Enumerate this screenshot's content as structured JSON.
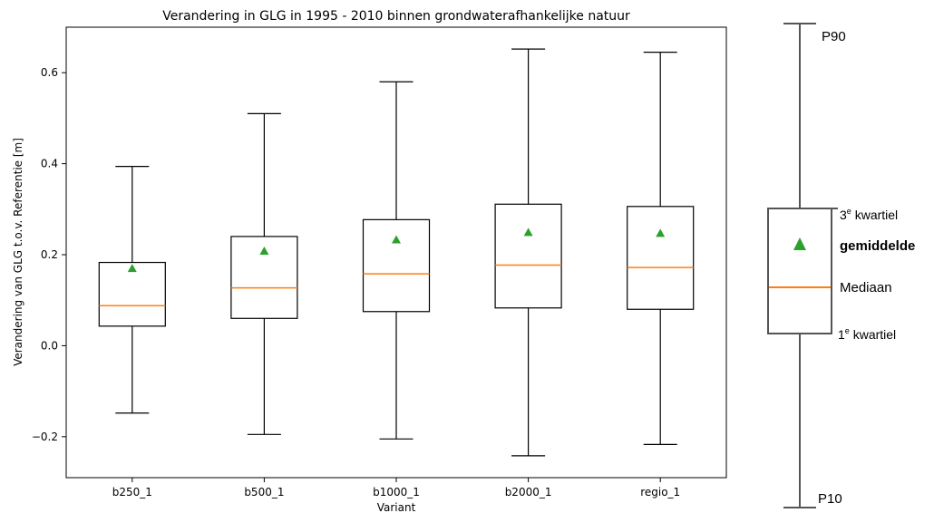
{
  "colors": {
    "axis": "#000000",
    "box": "#000000",
    "median": "#ff7f0e",
    "mean": "#2ca02c",
    "legend_line": "#555555"
  },
  "chart_data": {
    "type": "box",
    "title": "Verandering in GLG in 1995 - 2010 binnen grondwaterafhankelijke natuur",
    "xlabel": "Variant",
    "ylabel": "Verandering van GLG t.o.v. Referentie [m]",
    "ylim": [
      -0.29,
      0.7
    ],
    "yticks": [
      -0.2,
      0.0,
      0.2,
      0.4,
      0.6
    ],
    "ytick_labels": [
      "−0.2",
      "0.0",
      "0.2",
      "0.4",
      "0.6"
    ],
    "grid": false,
    "categories": [
      "b250_1",
      "b500_1",
      "b1000_1",
      "b2000_1",
      "regio_1"
    ],
    "boxes": [
      {
        "category": "b250_1",
        "p10": -0.148,
        "q1": 0.043,
        "median": 0.088,
        "q3": 0.183,
        "p90": 0.394,
        "mean": 0.17
      },
      {
        "category": "b500_1",
        "p10": -0.195,
        "q1": 0.06,
        "median": 0.127,
        "q3": 0.24,
        "p90": 0.51,
        "mean": 0.208
      },
      {
        "category": "b1000_1",
        "p10": -0.205,
        "q1": 0.075,
        "median": 0.158,
        "q3": 0.277,
        "p90": 0.58,
        "mean": 0.233
      },
      {
        "category": "b2000_1",
        "p10": -0.242,
        "q1": 0.083,
        "median": 0.177,
        "q3": 0.311,
        "p90": 0.652,
        "mean": 0.249
      },
      {
        "category": "regio_1",
        "p10": -0.217,
        "q1": 0.08,
        "median": 0.172,
        "q3": 0.306,
        "p90": 0.645,
        "mean": 0.247
      }
    ]
  },
  "legend": {
    "p90": "P90",
    "q3": "3e kwartiel",
    "mean": "gemiddelde",
    "median": "Mediaan",
    "q1": "1e kwartiel",
    "p10": "P10"
  }
}
